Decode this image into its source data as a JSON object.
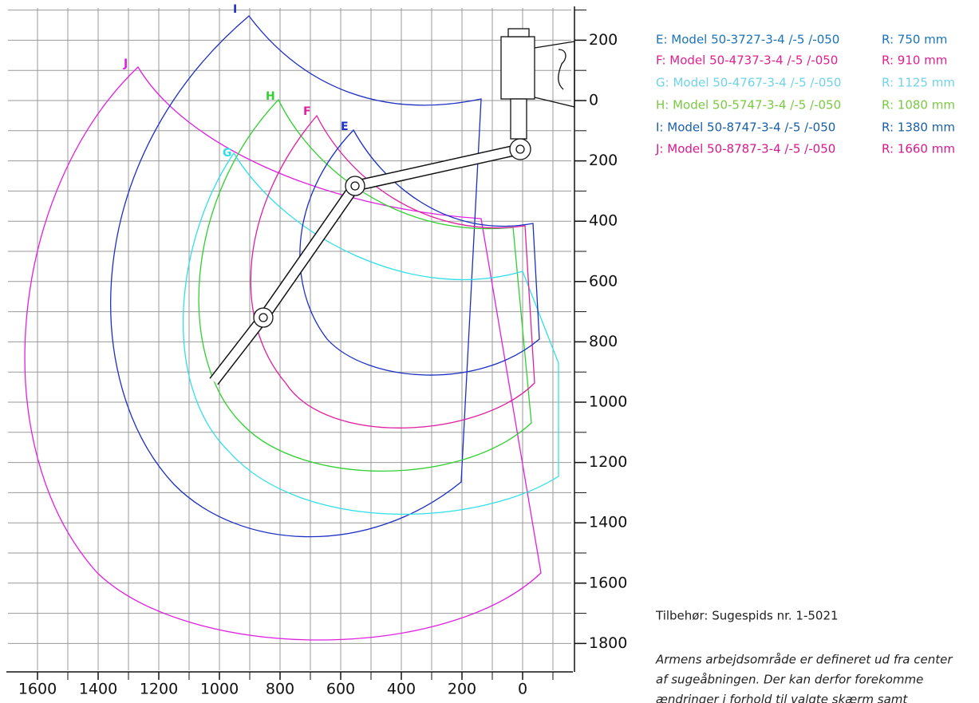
{
  "axes": {
    "xticks": [
      1600,
      1400,
      1200,
      1000,
      800,
      600,
      400,
      200,
      0
    ],
    "yticks": [
      {
        "value": -200,
        "label": "200"
      },
      0,
      200,
      400,
      600,
      800,
      1000,
      1200,
      1400,
      1600,
      1800
    ]
  },
  "curve_labels": [
    "E",
    "F",
    "G",
    "H",
    "I",
    "J"
  ],
  "legend": [
    {
      "model": "E: Model 50-3727-3-4 /-5 /-050",
      "radius": "R: 750 mm"
    },
    {
      "model": "F: Model 50-4737-3-4 /-5 /-050",
      "radius": "R: 910 mm"
    },
    {
      "model": "G: Model 50-4767-3-4 /-5 /-050",
      "radius": "R: 1125 mm"
    },
    {
      "model": "H: Model 50-5747-3-4 /-5 /-050",
      "radius": "R: 1080 mm"
    },
    {
      "model": "I: Model 50-8747-3-4 /-5 /-050",
      "radius": "R: 1380 mm"
    },
    {
      "model": "J: Model 50-8787-3-4 /-5 /-050",
      "radius": "R: 1660 mm"
    }
  ],
  "notes": {
    "accessory": "Tilbehør: Sugespids nr. 1-5021",
    "disclaimer": [
      "Armens arbejdsområde er defineret ud fra center",
      "af sugeåbningen. Der kan derfor forekomme",
      "ændringer i forhold til valgte skærm samt"
    ]
  }
}
